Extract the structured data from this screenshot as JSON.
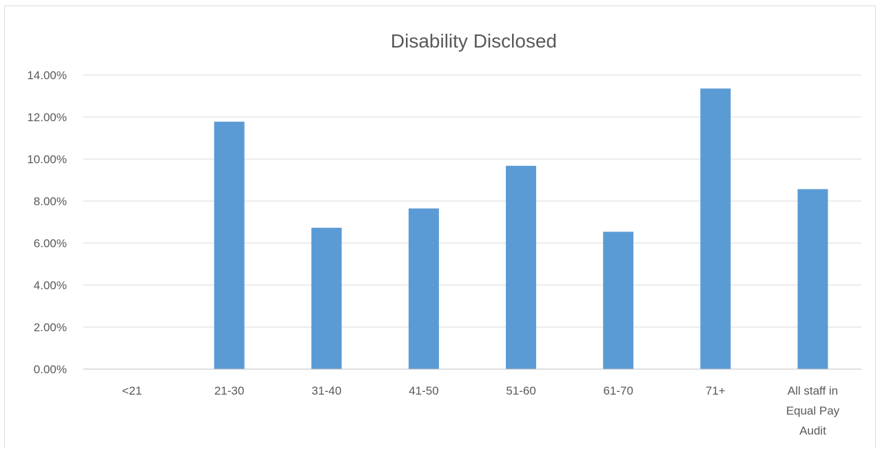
{
  "chart_data": {
    "type": "bar",
    "title": "Disability Disclosed",
    "xlabel": "",
    "ylabel": "",
    "categories": [
      [
        "<21"
      ],
      [
        "21-30"
      ],
      [
        "31-40"
      ],
      [
        "41-50"
      ],
      [
        "51-60"
      ],
      [
        "61-70"
      ],
      [
        "71+"
      ],
      [
        "All staff in",
        "Equal Pay",
        "Audit"
      ]
    ],
    "values": [
      0.0,
      11.78,
      6.73,
      7.65,
      9.68,
      6.54,
      13.36,
      8.57
    ],
    "ylim": [
      0,
      14
    ],
    "yticks": [
      0,
      2,
      4,
      6,
      8,
      10,
      12,
      14
    ],
    "ytick_labels": [
      "0.00%",
      "2.00%",
      "4.00%",
      "6.00%",
      "8.00%",
      "10.00%",
      "12.00%",
      "14.00%"
    ],
    "grid": true,
    "legend": "none",
    "bar_color": "#5b9bd5"
  }
}
